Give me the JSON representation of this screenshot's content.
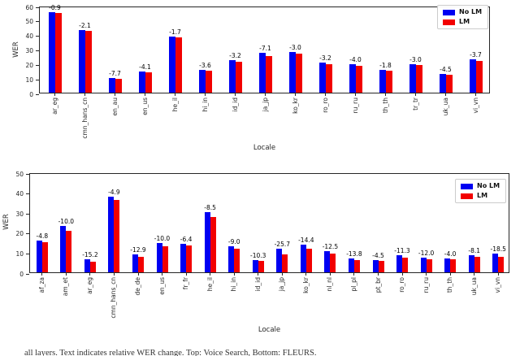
{
  "figure": {
    "background": "#ffffff",
    "spine_color": "#262626"
  },
  "colors": {
    "no_lm": "#0000f2",
    "lm": "#f20000"
  },
  "chart_data": [
    {
      "type": "bar",
      "panel": "top",
      "title": "",
      "xlabel": "Locale",
      "ylabel": "WER",
      "ylim": [
        0,
        60
      ],
      "yticks": [
        0,
        10,
        20,
        30,
        40,
        50,
        60
      ],
      "grid": false,
      "legend_position": "upper right",
      "categories": [
        "ar_eg",
        "cmn_hans_cn",
        "en_au",
        "en_us",
        "he_il",
        "hi_in",
        "id_id",
        "ja_jp",
        "ko_kr",
        "ro_ro",
        "ru_ru",
        "th_th",
        "tr_tr",
        "uk_ua",
        "vi_vn"
      ],
      "series": [
        {
          "name": "No LM",
          "color": "#0000f2",
          "values": [
            55.3,
            43.4,
            10.2,
            14.6,
            38.6,
            16.0,
            22.3,
            27.5,
            28.0,
            20.5,
            19.5,
            15.5,
            19.5,
            13.0,
            23.0
          ]
        },
        {
          "name": "LM",
          "color": "#f20000",
          "values": [
            54.8,
            42.5,
            9.4,
            14.0,
            37.9,
            15.4,
            21.6,
            25.5,
            27.2,
            19.8,
            18.7,
            15.2,
            18.9,
            12.4,
            22.1
          ]
        }
      ],
      "bar_labels": [
        "-0.9",
        "-2.1",
        "-7.7",
        "-4.1",
        "-1.7",
        "-3.6",
        "-3.2",
        "-7.1",
        "-3.0",
        "-3.2",
        "-4.0",
        "-1.8",
        "-3.0",
        "-4.5",
        "-3.7"
      ]
    },
    {
      "type": "bar",
      "panel": "bottom",
      "title": "",
      "xlabel": "Locale",
      "ylabel": "WER",
      "ylim": [
        0,
        50
      ],
      "yticks": [
        0,
        10,
        20,
        30,
        40,
        50
      ],
      "grid": false,
      "legend_position": "upper right",
      "categories": [
        "af_za",
        "am_et",
        "ar_eg",
        "cmn_hans_cn",
        "de_de",
        "en_us",
        "fr_fr",
        "he_il",
        "hi_in",
        "id_id",
        "ja_jp",
        "ko_kr",
        "nl_nl",
        "pl_pl",
        "pt_br",
        "ro_ro",
        "ru_ru",
        "th_th",
        "uk_ua",
        "vi_vn"
      ],
      "series": [
        {
          "name": "No LM",
          "color": "#0000f2",
          "values": [
            16.0,
            23.0,
            6.5,
            38.0,
            9.0,
            14.5,
            14.2,
            30.0,
            13.0,
            6.2,
            12.0,
            14.0,
            10.5,
            7.0,
            6.0,
            8.5,
            7.5,
            7.0,
            8.5,
            9.5
          ]
        },
        {
          "name": "LM",
          "color": "#f20000",
          "values": [
            15.2,
            20.7,
            5.5,
            36.1,
            7.8,
            13.1,
            13.3,
            27.5,
            11.8,
            5.6,
            8.9,
            12.0,
            9.2,
            6.0,
            5.7,
            7.5,
            6.6,
            6.7,
            7.8,
            7.7
          ]
        }
      ],
      "bar_labels": [
        "-4.8",
        "-10.0",
        "-15.2",
        "-4.9",
        "-12.9",
        "-10.0",
        "-6.4",
        "-8.5",
        "-9.0",
        "-10.3",
        "-25.7",
        "-14.4",
        "-12.5",
        "-13.8",
        "-4.5",
        "-11.3",
        "-12.0",
        "-4.0",
        "-8.1",
        "-18.5"
      ]
    }
  ],
  "caption": {
    "truncated": true,
    "text": "all layers. Text indicates relative WER change. Top: Voice Search, Bottom: FLEURS."
  }
}
